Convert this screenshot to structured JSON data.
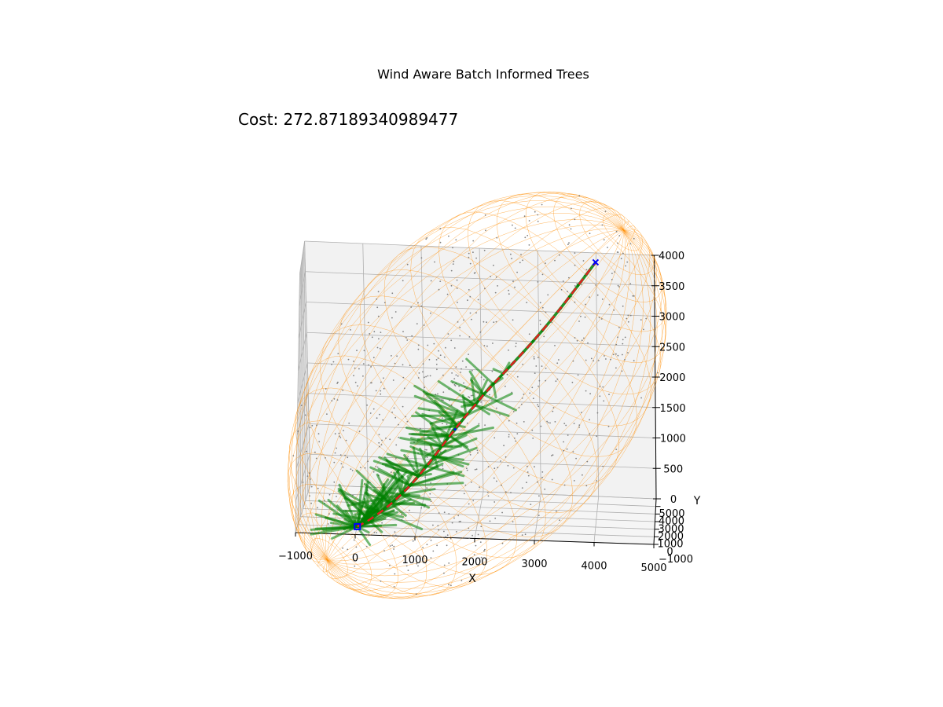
{
  "chart_data": {
    "type": "scatter",
    "title": "Wind Aware Batch Informed Trees",
    "annotation": "Cost: 272.87189340989477",
    "xlabel": "X",
    "ylabel": "Y",
    "zlabel": "",
    "xlim": [
      -1000,
      5000
    ],
    "ylim": [
      -1000,
      5000
    ],
    "zlim": [
      0,
      4000
    ],
    "x_ticks": [
      "−1000",
      "0",
      "1000",
      "2000",
      "3000",
      "4000",
      "5000"
    ],
    "y_ticks": [
      "−1000",
      "0",
      "1000",
      "2000",
      "3000",
      "4000",
      "5000"
    ],
    "z_ticks": [
      "0",
      "500",
      "1000",
      "1500",
      "2000",
      "2500",
      "3000",
      "3500",
      "4000"
    ],
    "grid": true,
    "colors": {
      "ellipsoid": "#ff8c00",
      "tree": "#008000",
      "path": "#e02020",
      "samples": "#808080",
      "markers": "#0000ff",
      "pane": "#f2f2f2",
      "grid": "#b0b0b0"
    },
    "start": {
      "x": 0,
      "y": 0,
      "z": 0
    },
    "goal": {
      "x": 4000,
      "y": 4000,
      "z": 4000
    },
    "series": [
      {
        "type": "surface-wireframe",
        "shape": "ellipsoid",
        "color": "orange"
      },
      {
        "type": "scatter",
        "color": "gray"
      },
      {
        "type": "line",
        "color": "green",
        "kind": "tree"
      },
      {
        "type": "line",
        "color": "red",
        "style": "dashed",
        "kind": "path"
      }
    ]
  }
}
